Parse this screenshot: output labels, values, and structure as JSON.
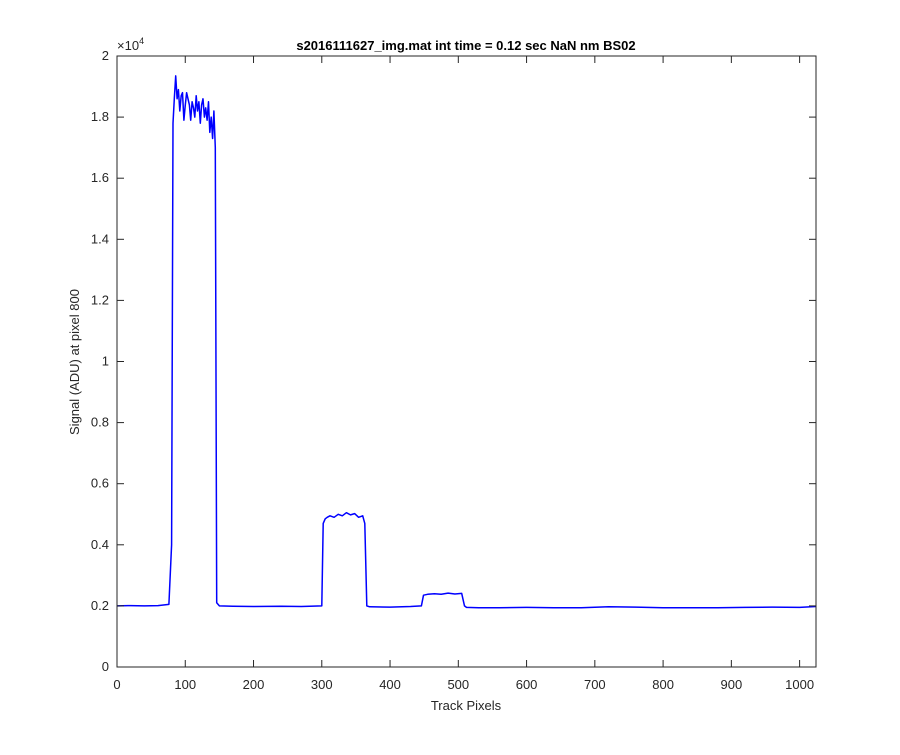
{
  "chart_data": {
    "type": "line",
    "title": "s2016111627_img.mat int time = 0.12 sec  NaN nm BS02",
    "xlabel": "Track Pixels",
    "ylabel": "Signal (ADU) at pixel 800",
    "y_multiplier_label": "×10",
    "y_multiplier_exponent": "4",
    "xlim": [
      0,
      1024
    ],
    "ylim": [
      0,
      20000
    ],
    "x_ticks": [
      0,
      100,
      200,
      300,
      400,
      500,
      600,
      700,
      800,
      900,
      1000
    ],
    "x_tick_labels": [
      "0",
      "100",
      "200",
      "300",
      "400",
      "500",
      "600",
      "700",
      "800",
      "900",
      "1000"
    ],
    "y_ticks": [
      0,
      2000,
      4000,
      6000,
      8000,
      10000,
      12000,
      14000,
      16000,
      18000,
      20000
    ],
    "y_tick_labels": [
      "0",
      "0.2",
      "0.4",
      "0.6",
      "0.8",
      "1",
      "1.2",
      "1.4",
      "1.6",
      "1.8",
      "2"
    ],
    "grid": false,
    "line_color": "#0000ff",
    "series": [
      {
        "x": [
          0,
          20,
          40,
          60,
          76,
          80,
          82,
          84,
          86,
          88,
          90,
          92,
          94,
          96,
          98,
          100,
          102,
          104,
          106,
          108,
          110,
          112,
          114,
          116,
          118,
          120,
          122,
          124,
          126,
          128,
          130,
          132,
          134,
          136,
          138,
          140,
          142,
          144,
          146,
          150,
          170,
          200,
          240,
          270,
          300,
          302,
          305,
          308,
          312,
          318,
          324,
          330,
          336,
          342,
          348,
          354,
          360,
          363,
          366,
          370,
          400,
          430,
          446,
          449,
          455,
          465,
          475,
          485,
          495,
          505,
          509,
          512,
          530,
          560,
          600,
          640,
          680,
          720,
          760,
          800,
          840,
          880,
          920,
          960,
          1000,
          1024
        ],
        "y": [
          2000,
          2010,
          2000,
          2010,
          2050,
          4000,
          17800,
          18600,
          19350,
          18600,
          18900,
          18200,
          18700,
          18800,
          17900,
          18400,
          18800,
          18600,
          18400,
          17900,
          18500,
          18300,
          18000,
          18700,
          18200,
          18500,
          17800,
          18400,
          18600,
          18000,
          18300,
          17900,
          18500,
          17500,
          18000,
          17300,
          18200,
          17000,
          2100,
          2000,
          1990,
          1980,
          1990,
          1980,
          2000,
          4700,
          4850,
          4900,
          4950,
          4900,
          5000,
          4950,
          5050,
          4980,
          5020,
          4900,
          4950,
          4700,
          2000,
          1970,
          1960,
          1980,
          2000,
          2350,
          2380,
          2400,
          2380,
          2420,
          2390,
          2410,
          2000,
          1950,
          1940,
          1940,
          1950,
          1940,
          1940,
          1970,
          1960,
          1940,
          1940,
          1940,
          1950,
          1960,
          1950,
          1980
        ]
      }
    ]
  }
}
